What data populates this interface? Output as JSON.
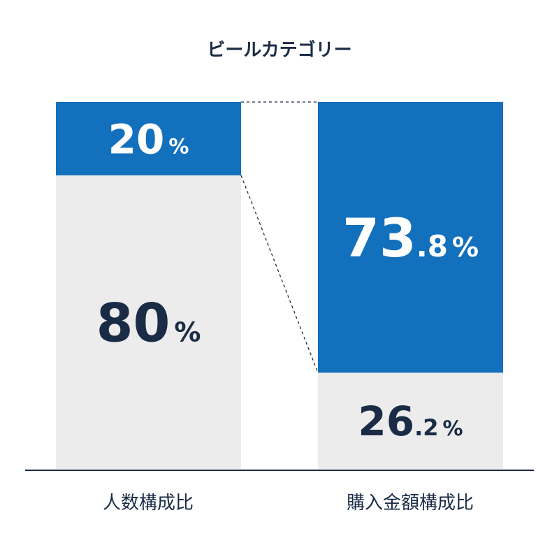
{
  "chart_data": {
    "type": "bar",
    "stacked": true,
    "percent": true,
    "title": "ビールカテゴリー",
    "categories": [
      "人数構成比",
      "購入金額構成比"
    ],
    "series": [
      {
        "values": [
          20,
          73.8
        ],
        "labels": [
          "20",
          "73.8"
        ],
        "color": "#1270bd",
        "label_color": "#ffffff"
      },
      {
        "values": [
          80,
          26.2
        ],
        "labels": [
          "80",
          "26.2"
        ],
        "color": "#ececec",
        "label_color": "#1a2b45"
      }
    ],
    "unit": "%",
    "ylim": [
      0,
      100
    ],
    "grid": false,
    "connector_lines": "dashed"
  }
}
